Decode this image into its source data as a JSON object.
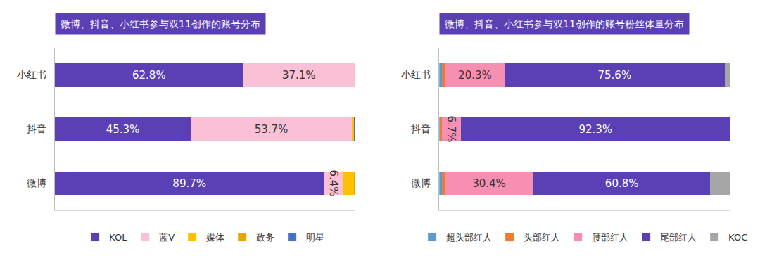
{
  "chart_data": [
    {
      "type": "bar",
      "title": "微博、抖音、小红书参与双11创作的账号分布",
      "orientation": "horizontal",
      "stacked": true,
      "categories": [
        "小红书",
        "抖音",
        "微博"
      ],
      "series": [
        {
          "name": "KOL",
          "color": "#5b3fb5",
          "values": [
            62.8,
            45.3,
            89.7
          ],
          "value_labels": [
            "62.8%",
            "45.3%",
            "89.7%"
          ]
        },
        {
          "name": "蓝V",
          "color": "#f9c0d6",
          "values": [
            37.1,
            53.7,
            6.4
          ],
          "value_labels": [
            "37.1%",
            "53.7%",
            "6.4%"
          ]
        },
        {
          "name": "媒体",
          "color": "#ffc000",
          "values": [
            0.05,
            0.6,
            3.5
          ],
          "value_labels": [
            null,
            null,
            null
          ]
        },
        {
          "name": "政务",
          "color": "#e6a800",
          "values": [
            0.05,
            0.2,
            0.3
          ],
          "value_labels": [
            null,
            null,
            null
          ]
        },
        {
          "name": "明星",
          "color": "#4472c4",
          "values": [
            0,
            0.2,
            0.1
          ],
          "value_labels": [
            null,
            null,
            null
          ]
        }
      ],
      "xlim": [
        0,
        100
      ],
      "tick_labels": "y",
      "data_labels": true,
      "legend": "bottom"
    },
    {
      "type": "bar",
      "title": "微博、抖音、小红书参与双11创作的账号粉丝体量分布",
      "orientation": "horizontal",
      "stacked": true,
      "categories": [
        "小红书",
        "抖音",
        "微博"
      ],
      "series": [
        {
          "name": "超头部红人",
          "color": "#5b9bd5",
          "values": [
            0.8,
            0.3,
            1.0
          ],
          "value_labels": [
            null,
            null,
            null
          ]
        },
        {
          "name": "头部红人",
          "color": "#ed7d31",
          "values": [
            1.3,
            0.5,
            0.9
          ],
          "value_labels": [
            null,
            null,
            null
          ]
        },
        {
          "name": "腰部红人",
          "color": "#f78fb3",
          "values": [
            20.3,
            6.7,
            30.4
          ],
          "value_labels": [
            "20.3%",
            "6.7%",
            "30.4%"
          ]
        },
        {
          "name": "尾部红人",
          "color": "#5b3fb5",
          "values": [
            75.6,
            92.3,
            60.8
          ],
          "value_labels": [
            "75.6%",
            "92.3%",
            "60.8%"
          ]
        },
        {
          "name": "KOC",
          "color": "#a6a6a6",
          "values": [
            2.0,
            0.2,
            6.9
          ],
          "value_labels": [
            null,
            null,
            null
          ]
        }
      ],
      "xlim": [
        0,
        100
      ],
      "tick_labels": "y",
      "data_labels": true,
      "legend": "bottom"
    }
  ]
}
